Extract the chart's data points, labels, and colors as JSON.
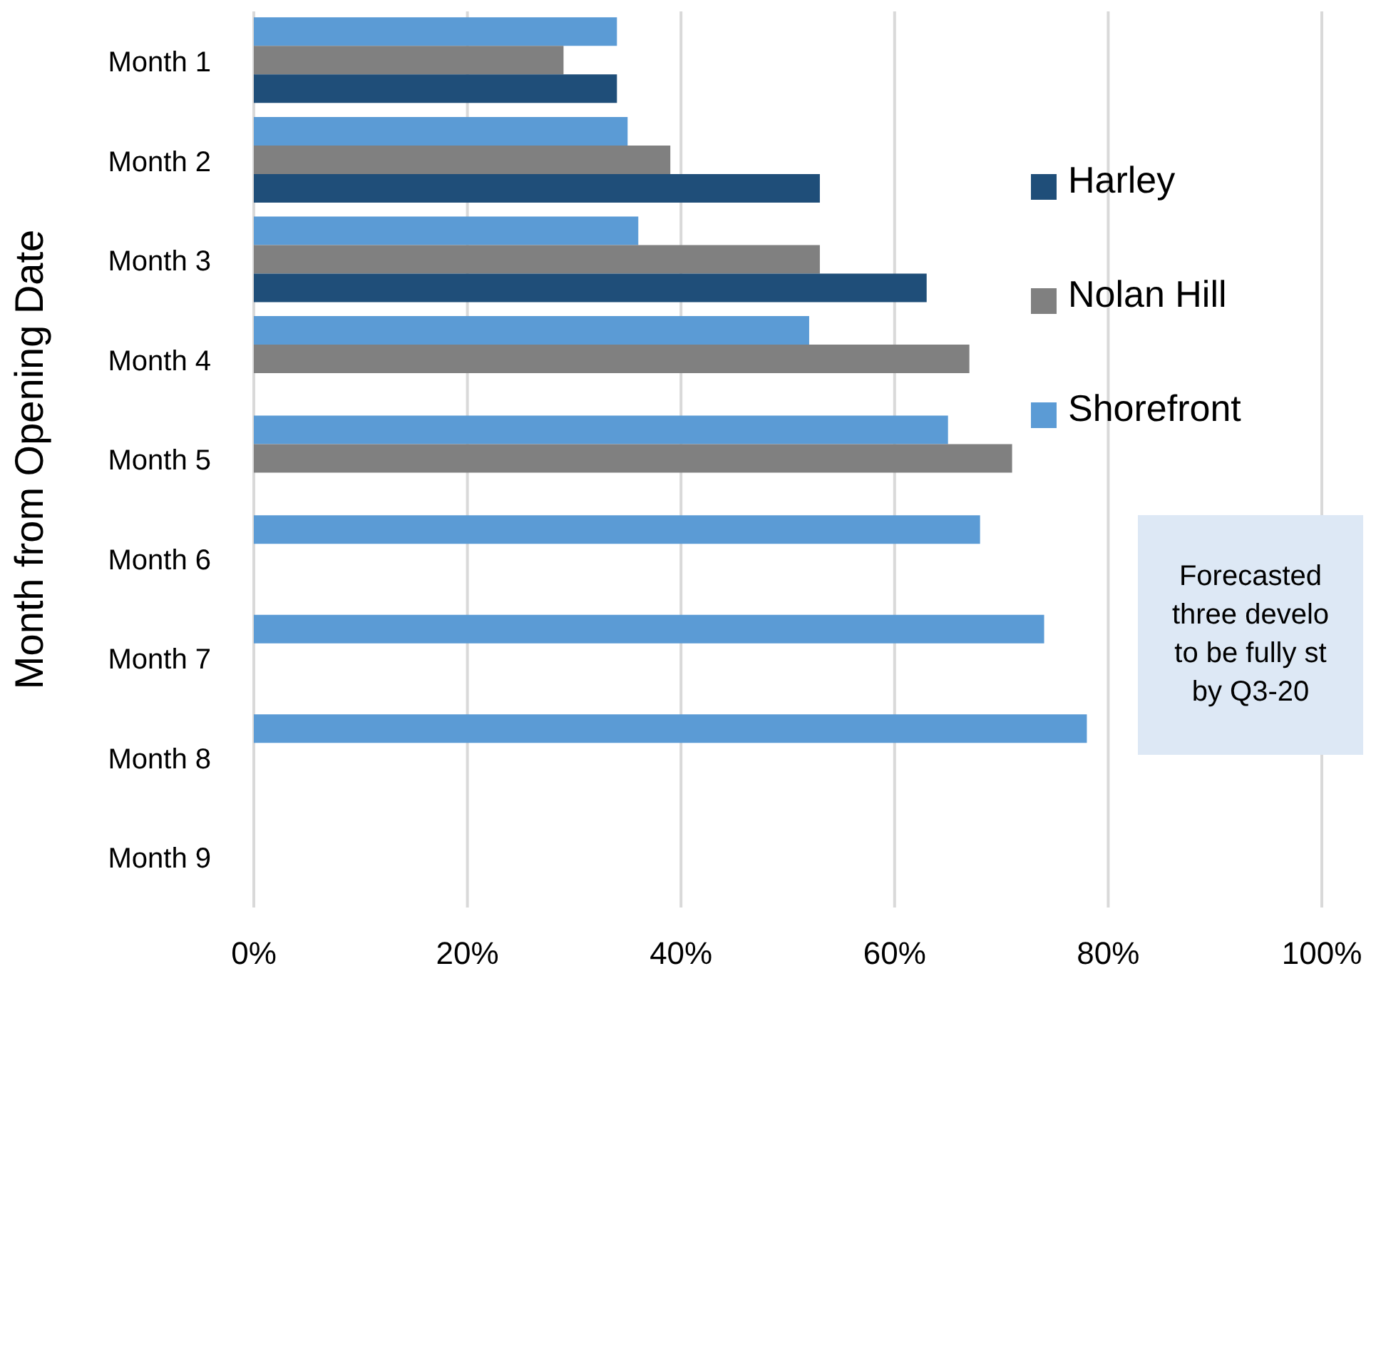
{
  "chart_data": {
    "type": "bar",
    "orientation": "horizontal",
    "ylabel": "Month from Opening Date",
    "categories": [
      "Month 1",
      "Month 2",
      "Month 3",
      "Month 4",
      "Month 5",
      "Month 6",
      "Month 7",
      "Month 8",
      "Month 9"
    ],
    "series": [
      {
        "name": "Shorefront",
        "color": "#5b9bd5",
        "values": [
          34,
          35,
          36,
          52,
          65,
          68,
          74,
          78,
          null
        ]
      },
      {
        "name": "Nolan Hill",
        "color": "#808080",
        "values": [
          29,
          39,
          53,
          67,
          71,
          null,
          null,
          null,
          null
        ]
      },
      {
        "name": "Harley",
        "color": "#1f4e79",
        "values": [
          34,
          53,
          63,
          null,
          null,
          null,
          null,
          null,
          null
        ]
      }
    ],
    "xlim": [
      0,
      100
    ],
    "xticks": [
      {
        "value": 0,
        "label": "0%"
      },
      {
        "value": 20,
        "label": "20%"
      },
      {
        "value": 40,
        "label": "40%"
      },
      {
        "value": 60,
        "label": "60%"
      },
      {
        "value": 80,
        "label": "80%"
      },
      {
        "value": 100,
        "label": "100%"
      }
    ],
    "grid": "x",
    "legend": "right",
    "annotations": [
      "Forecasted\nthree develo\nto be fully st\nby Q3-20"
    ]
  }
}
